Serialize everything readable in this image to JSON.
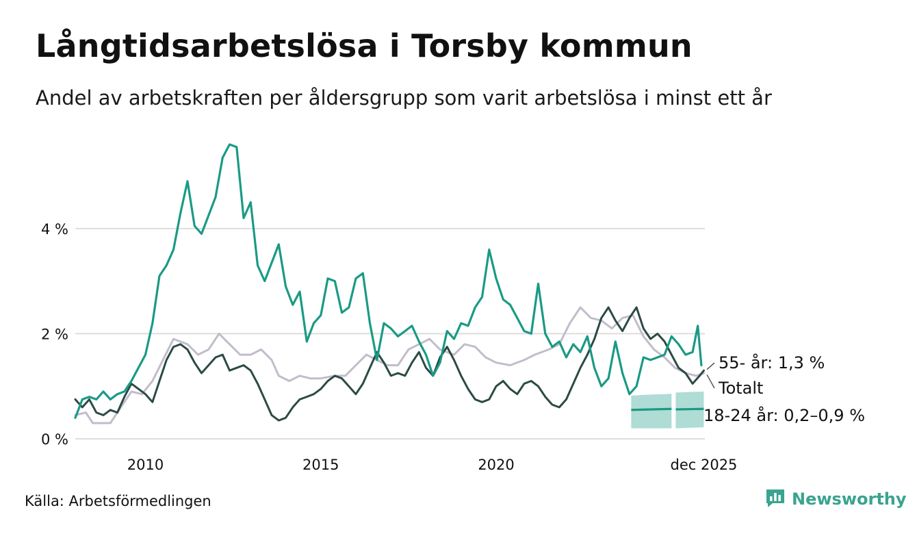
{
  "header": {
    "title": "Långtidsarbetslösa i Torsby kommun",
    "subtitle": "Andel av arbetskraften per åldersgrupp som varit arbetslösa i minst ett år"
  },
  "footer": {
    "source": "Källa: Arbetsförmedlingen",
    "brand": "Newsworthy"
  },
  "colors": {
    "age_18_24": "#1a9a85",
    "age_55": "#2b4a45",
    "total": "#c2bccb",
    "band": "#a6d8cf",
    "grid": "#dddddd",
    "brand": "#3aa391"
  },
  "chart_data": {
    "type": "line",
    "title": "Långtidsarbetslösa i Torsby kommun",
    "xlabel": "",
    "ylabel": "",
    "xlim": [
      2008.0,
      2025.95
    ],
    "ylim": [
      0,
      5.6
    ],
    "y_ticks": [
      0,
      2,
      4
    ],
    "y_tick_labels": [
      "0 %",
      "2 %",
      "4 %"
    ],
    "x_ticks": [
      2010,
      2015,
      2020,
      2025.92
    ],
    "x_tick_labels": [
      "2010",
      "2015",
      "2020",
      "dec 2025"
    ],
    "grid": true,
    "series": [
      {
        "name": "Totalt",
        "color_key": "total",
        "end_label": "Totalt",
        "points": [
          [
            2008.0,
            0.45
          ],
          [
            2008.3,
            0.5
          ],
          [
            2008.5,
            0.3
          ],
          [
            2009.0,
            0.3
          ],
          [
            2009.3,
            0.6
          ],
          [
            2009.6,
            0.9
          ],
          [
            2009.9,
            0.85
          ],
          [
            2010.2,
            1.1
          ],
          [
            2010.5,
            1.5
          ],
          [
            2010.8,
            1.9
          ],
          [
            2011.2,
            1.8
          ],
          [
            2011.5,
            1.6
          ],
          [
            2011.8,
            1.7
          ],
          [
            2012.1,
            2.0
          ],
          [
            2012.4,
            1.8
          ],
          [
            2012.7,
            1.6
          ],
          [
            2013.0,
            1.6
          ],
          [
            2013.3,
            1.7
          ],
          [
            2013.6,
            1.5
          ],
          [
            2013.8,
            1.2
          ],
          [
            2014.1,
            1.1
          ],
          [
            2014.4,
            1.2
          ],
          [
            2014.7,
            1.15
          ],
          [
            2015.0,
            1.15
          ],
          [
            2015.4,
            1.2
          ],
          [
            2015.7,
            1.2
          ],
          [
            2016.0,
            1.4
          ],
          [
            2016.3,
            1.6
          ],
          [
            2016.6,
            1.5
          ],
          [
            2016.9,
            1.4
          ],
          [
            2017.2,
            1.4
          ],
          [
            2017.5,
            1.7
          ],
          [
            2017.8,
            1.8
          ],
          [
            2018.1,
            1.9
          ],
          [
            2018.4,
            1.7
          ],
          [
            2018.8,
            1.6
          ],
          [
            2019.1,
            1.8
          ],
          [
            2019.4,
            1.75
          ],
          [
            2019.7,
            1.55
          ],
          [
            2020.0,
            1.45
          ],
          [
            2020.4,
            1.4
          ],
          [
            2020.8,
            1.5
          ],
          [
            2021.1,
            1.6
          ],
          [
            2021.5,
            1.7
          ],
          [
            2021.8,
            1.8
          ],
          [
            2022.1,
            2.2
          ],
          [
            2022.4,
            2.5
          ],
          [
            2022.7,
            2.3
          ],
          [
            2023.0,
            2.25
          ],
          [
            2023.3,
            2.1
          ],
          [
            2023.6,
            2.3
          ],
          [
            2023.9,
            2.35
          ],
          [
            2024.2,
            1.95
          ],
          [
            2024.5,
            1.7
          ],
          [
            2024.8,
            1.55
          ],
          [
            2025.1,
            1.35
          ],
          [
            2025.4,
            1.25
          ],
          [
            2025.7,
            1.2
          ],
          [
            2025.92,
            1.25
          ]
        ]
      },
      {
        "name": "55- år",
        "color_key": "age_55",
        "end_label": "55- år: 1,3 %",
        "points": [
          [
            2008.0,
            0.75
          ],
          [
            2008.2,
            0.6
          ],
          [
            2008.4,
            0.75
          ],
          [
            2008.6,
            0.5
          ],
          [
            2008.8,
            0.45
          ],
          [
            2009.0,
            0.55
          ],
          [
            2009.2,
            0.5
          ],
          [
            2009.4,
            0.8
          ],
          [
            2009.6,
            1.05
          ],
          [
            2009.8,
            0.95
          ],
          [
            2010.0,
            0.85
          ],
          [
            2010.2,
            0.7
          ],
          [
            2010.4,
            1.1
          ],
          [
            2010.6,
            1.5
          ],
          [
            2010.8,
            1.75
          ],
          [
            2011.0,
            1.8
          ],
          [
            2011.2,
            1.7
          ],
          [
            2011.4,
            1.45
          ],
          [
            2011.6,
            1.25
          ],
          [
            2011.8,
            1.4
          ],
          [
            2012.0,
            1.55
          ],
          [
            2012.2,
            1.6
          ],
          [
            2012.4,
            1.3
          ],
          [
            2012.6,
            1.35
          ],
          [
            2012.8,
            1.4
          ],
          [
            2013.0,
            1.3
          ],
          [
            2013.2,
            1.05
          ],
          [
            2013.4,
            0.75
          ],
          [
            2013.6,
            0.45
          ],
          [
            2013.8,
            0.35
          ],
          [
            2014.0,
            0.4
          ],
          [
            2014.2,
            0.6
          ],
          [
            2014.4,
            0.75
          ],
          [
            2014.6,
            0.8
          ],
          [
            2014.8,
            0.85
          ],
          [
            2015.0,
            0.95
          ],
          [
            2015.2,
            1.1
          ],
          [
            2015.4,
            1.2
          ],
          [
            2015.6,
            1.15
          ],
          [
            2015.8,
            1.0
          ],
          [
            2016.0,
            0.85
          ],
          [
            2016.2,
            1.05
          ],
          [
            2016.4,
            1.35
          ],
          [
            2016.6,
            1.65
          ],
          [
            2016.8,
            1.45
          ],
          [
            2017.0,
            1.2
          ],
          [
            2017.2,
            1.25
          ],
          [
            2017.4,
            1.2
          ],
          [
            2017.6,
            1.45
          ],
          [
            2017.8,
            1.65
          ],
          [
            2018.0,
            1.35
          ],
          [
            2018.2,
            1.2
          ],
          [
            2018.4,
            1.55
          ],
          [
            2018.6,
            1.75
          ],
          [
            2018.8,
            1.5
          ],
          [
            2019.0,
            1.2
          ],
          [
            2019.2,
            0.95
          ],
          [
            2019.4,
            0.75
          ],
          [
            2019.6,
            0.7
          ],
          [
            2019.8,
            0.75
          ],
          [
            2020.0,
            1.0
          ],
          [
            2020.2,
            1.1
          ],
          [
            2020.4,
            0.95
          ],
          [
            2020.6,
            0.85
          ],
          [
            2020.8,
            1.05
          ],
          [
            2021.0,
            1.1
          ],
          [
            2021.2,
            1.0
          ],
          [
            2021.4,
            0.8
          ],
          [
            2021.6,
            0.65
          ],
          [
            2021.8,
            0.6
          ],
          [
            2022.0,
            0.75
          ],
          [
            2022.2,
            1.05
          ],
          [
            2022.4,
            1.35
          ],
          [
            2022.6,
            1.6
          ],
          [
            2022.8,
            1.9
          ],
          [
            2023.0,
            2.3
          ],
          [
            2023.2,
            2.5
          ],
          [
            2023.4,
            2.25
          ],
          [
            2023.6,
            2.05
          ],
          [
            2023.8,
            2.3
          ],
          [
            2024.0,
            2.5
          ],
          [
            2024.2,
            2.1
          ],
          [
            2024.4,
            1.9
          ],
          [
            2024.6,
            2.0
          ],
          [
            2024.8,
            1.85
          ],
          [
            2025.0,
            1.6
          ],
          [
            2025.2,
            1.35
          ],
          [
            2025.4,
            1.25
          ],
          [
            2025.6,
            1.05
          ],
          [
            2025.8,
            1.2
          ],
          [
            2025.92,
            1.3
          ]
        ]
      },
      {
        "name": "18-24 år",
        "color_key": "age_18_24",
        "end_label": "18-24 år: 0,2–0,9 %",
        "points": [
          [
            2008.0,
            0.4
          ],
          [
            2008.2,
            0.75
          ],
          [
            2008.4,
            0.8
          ],
          [
            2008.6,
            0.75
          ],
          [
            2008.8,
            0.9
          ],
          [
            2009.0,
            0.75
          ],
          [
            2009.2,
            0.85
          ],
          [
            2009.4,
            0.9
          ],
          [
            2009.6,
            1.1
          ],
          [
            2009.8,
            1.35
          ],
          [
            2010.0,
            1.6
          ],
          [
            2010.2,
            2.2
          ],
          [
            2010.4,
            3.1
          ],
          [
            2010.6,
            3.3
          ],
          [
            2010.8,
            3.6
          ],
          [
            2011.0,
            4.3
          ],
          [
            2011.2,
            4.9
          ],
          [
            2011.4,
            4.05
          ],
          [
            2011.6,
            3.9
          ],
          [
            2011.8,
            4.25
          ],
          [
            2012.0,
            4.6
          ],
          [
            2012.2,
            5.35
          ],
          [
            2012.4,
            5.6
          ],
          [
            2012.6,
            5.55
          ],
          [
            2012.8,
            4.2
          ],
          [
            2013.0,
            4.5
          ],
          [
            2013.2,
            3.3
          ],
          [
            2013.4,
            3.0
          ],
          [
            2013.6,
            3.35
          ],
          [
            2013.8,
            3.7
          ],
          [
            2014.0,
            2.9
          ],
          [
            2014.2,
            2.55
          ],
          [
            2014.4,
            2.8
          ],
          [
            2014.6,
            1.85
          ],
          [
            2014.8,
            2.2
          ],
          [
            2015.0,
            2.35
          ],
          [
            2015.2,
            3.05
          ],
          [
            2015.4,
            3.0
          ],
          [
            2015.6,
            2.4
          ],
          [
            2015.8,
            2.5
          ],
          [
            2016.0,
            3.05
          ],
          [
            2016.2,
            3.15
          ],
          [
            2016.4,
            2.2
          ],
          [
            2016.6,
            1.5
          ],
          [
            2016.8,
            2.2
          ],
          [
            2017.0,
            2.1
          ],
          [
            2017.2,
            1.95
          ],
          [
            2017.4,
            2.05
          ],
          [
            2017.6,
            2.15
          ],
          [
            2017.8,
            1.85
          ],
          [
            2018.0,
            1.6
          ],
          [
            2018.2,
            1.2
          ],
          [
            2018.4,
            1.45
          ],
          [
            2018.6,
            2.05
          ],
          [
            2018.8,
            1.9
          ],
          [
            2019.0,
            2.2
          ],
          [
            2019.2,
            2.15
          ],
          [
            2019.4,
            2.5
          ],
          [
            2019.6,
            2.7
          ],
          [
            2019.8,
            3.6
          ],
          [
            2020.0,
            3.05
          ],
          [
            2020.2,
            2.65
          ],
          [
            2020.4,
            2.55
          ],
          [
            2020.6,
            2.3
          ],
          [
            2020.8,
            2.05
          ],
          [
            2021.0,
            2.0
          ],
          [
            2021.2,
            2.95
          ],
          [
            2021.4,
            2.0
          ],
          [
            2021.6,
            1.75
          ],
          [
            2021.8,
            1.85
          ],
          [
            2022.0,
            1.55
          ],
          [
            2022.2,
            1.8
          ],
          [
            2022.4,
            1.65
          ],
          [
            2022.6,
            1.95
          ],
          [
            2022.8,
            1.35
          ],
          [
            2023.0,
            1.0
          ],
          [
            2023.2,
            1.15
          ],
          [
            2023.4,
            1.85
          ],
          [
            2023.6,
            1.25
          ],
          [
            2023.8,
            0.85
          ],
          [
            2024.0,
            1.0
          ],
          [
            2024.2,
            1.55
          ],
          [
            2024.4,
            1.5
          ],
          [
            2024.6,
            1.55
          ],
          [
            2024.8,
            1.6
          ],
          [
            2025.0,
            1.95
          ],
          [
            2025.2,
            1.8
          ],
          [
            2025.4,
            1.6
          ],
          [
            2025.6,
            1.65
          ],
          [
            2025.75,
            2.15
          ],
          [
            2025.85,
            1.4
          ]
        ]
      }
    ]
  }
}
